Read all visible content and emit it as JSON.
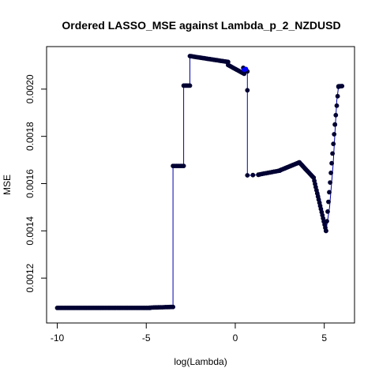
{
  "chart_data": {
    "type": "line",
    "title": "Ordered LASSO_MSE against Lambda_p_2_NZDUSD",
    "xlabel": "log(Lambda)",
    "ylabel": "MSE",
    "xlim": [
      -10.6,
      6.7
    ],
    "ylim": [
      0.00101,
      0.00218
    ],
    "xticks": [
      -10,
      -5,
      0,
      5
    ],
    "xtick_labels": [
      "-10",
      "-5",
      "0",
      "5"
    ],
    "yticks": [
      0.0012,
      0.0014,
      0.0016,
      0.0018,
      0.002
    ],
    "ytick_labels": [
      "0.0012",
      "0.0014",
      "0.0016",
      "0.0018",
      "0.0020"
    ],
    "grid": false,
    "colors": {
      "line": "#0000aa",
      "points": "#000033",
      "highlight": "#0000ff"
    },
    "series": [
      {
        "line_points": [
          [
            -10.0,
            0.001074
          ],
          [
            -4.8,
            0.001074
          ],
          [
            -4.4,
            0.001076
          ],
          [
            -3.5,
            0.001078
          ],
          [
            -3.5,
            0.001675
          ],
          [
            -3.0,
            0.001675
          ],
          [
            -2.9,
            0.001675
          ],
          [
            -2.9,
            0.002015
          ],
          [
            -2.6,
            0.002015
          ],
          [
            -2.55,
            0.002015
          ],
          [
            -2.55,
            0.00214
          ],
          [
            -2.0,
            0.002138
          ],
          [
            -1.5,
            0.002132
          ],
          [
            -1.0,
            0.002125
          ],
          [
            -0.4,
            0.002115
          ],
          [
            -0.4,
            0.002102
          ],
          [
            0.0,
            0.002088
          ],
          [
            0.5,
            0.002065
          ],
          [
            0.5,
            0.00209
          ],
          [
            0.68,
            0.002078
          ],
          [
            0.68,
            0.001995
          ],
          [
            0.68,
            0.001635
          ],
          [
            1.0,
            0.001635
          ],
          [
            2.0,
            0.001645
          ],
          [
            3.0,
            0.00167
          ],
          [
            3.6,
            0.00169
          ],
          [
            3.8,
            0.001685
          ],
          [
            4.3,
            0.00164
          ],
          [
            4.7,
            0.00156
          ],
          [
            5.0,
            0.00145
          ],
          [
            5.1,
            0.0014
          ],
          [
            5.3,
            0.0015
          ],
          [
            5.5,
            0.00168
          ],
          [
            5.7,
            0.00195
          ],
          [
            5.8,
            0.00201
          ],
          [
            6.0,
            0.002013
          ]
        ],
        "point_segments": [
          [
            -10.0,
            0.001074,
            -4.8,
            0.001074,
            55
          ],
          [
            -4.8,
            0.001075,
            -3.5,
            0.001078,
            14
          ],
          [
            -3.5,
            0.001675,
            -2.9,
            0.001675,
            7
          ],
          [
            -2.9,
            0.002015,
            -2.55,
            0.002015,
            5
          ],
          [
            -2.55,
            0.00214,
            -0.4,
            0.002115,
            28
          ],
          [
            -0.4,
            0.002102,
            0.5,
            0.002065,
            12
          ],
          [
            0.68,
            0.001635,
            1.3,
            0.001637,
            3
          ],
          [
            1.3,
            0.001638,
            2.5,
            0.001655,
            12
          ],
          [
            2.5,
            0.001656,
            3.6,
            0.00169,
            18
          ],
          [
            3.6,
            0.00169,
            4.4,
            0.001625,
            16
          ],
          [
            4.4,
            0.001625,
            5.1,
            0.0014,
            18
          ],
          [
            5.1,
            0.0014,
            5.6,
            0.00185,
            12
          ],
          [
            5.6,
            0.00185,
            5.8,
            0.00201,
            5
          ],
          [
            5.8,
            0.002012,
            6.0,
            0.002013,
            4
          ]
        ],
        "extra_points": [
          [
            0.68,
            0.001995
          ],
          [
            0.68,
            0.002075
          ],
          [
            0.45,
            0.00209
          ]
        ],
        "highlight_points": [
          [
            0.5,
            0.002082
          ],
          [
            0.6,
            0.002085
          ]
        ]
      }
    ]
  }
}
